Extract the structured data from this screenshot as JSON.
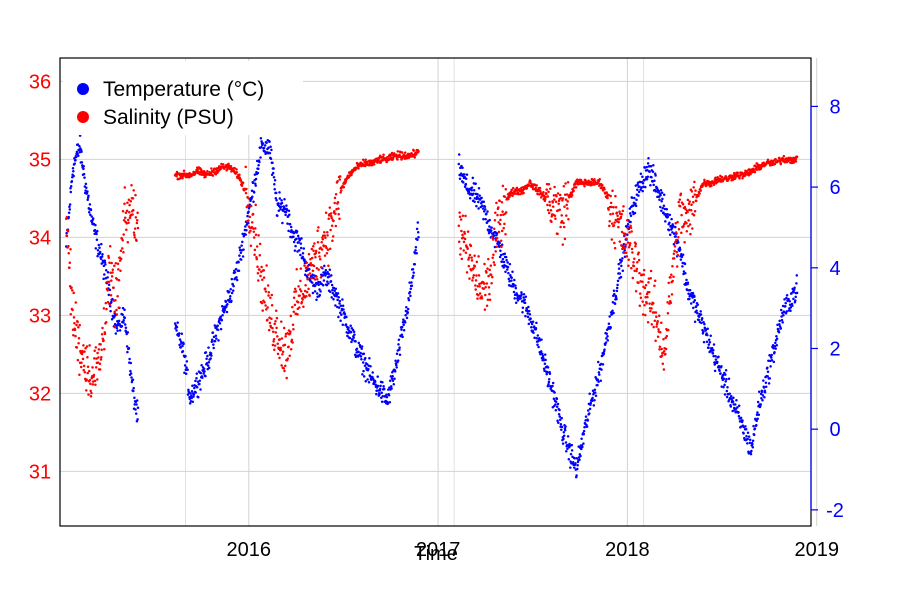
{
  "chart_data": {
    "type": "scatter",
    "xlabel": "Time",
    "x_ticks": [
      "2016",
      "2017",
      "2018",
      "2019"
    ],
    "x_range": [
      "2015-07-03",
      "2019-06-20"
    ],
    "y_left": {
      "ticks": [
        31,
        32,
        33,
        34,
        35,
        36
      ],
      "range": [
        30.3,
        36.3
      ],
      "color": "#ff0000"
    },
    "y_right": {
      "ticks": [
        -2,
        0,
        2,
        4,
        6,
        8
      ],
      "range": [
        -2.4,
        9.2
      ],
      "color": "#0000ff"
    },
    "grid": true,
    "legend": {
      "placement": "top-left"
    },
    "series": [
      {
        "name": "Temperature (°C)",
        "axis": "right",
        "color": "#0000ff",
        "segments": [
          {
            "x": [
              "2015-07-15",
              "2015-07-28",
              "2015-08-10",
              "2015-08-22",
              "2015-09-05",
              "2015-09-20",
              "2015-10-05",
              "2015-10-20",
              "2015-11-05",
              "2015-11-20",
              "2015-12-01"
            ],
            "y": [
              4.5,
              6.5,
              7.0,
              6.0,
              5.0,
              4.3,
              3.5,
              2.5,
              2.8,
              1.0,
              0.2
            ]
          },
          {
            "x": [
              "2016-02-10",
              "2016-02-25",
              "2016-03-10",
              "2016-03-25",
              "2016-04-10",
              "2016-04-25",
              "2016-05-10",
              "2016-05-25",
              "2016-06-10",
              "2016-06-25",
              "2016-07-10",
              "2016-07-25",
              "2016-08-10",
              "2016-08-25",
              "2016-09-10",
              "2016-09-25",
              "2016-10-10",
              "2016-10-25",
              "2016-11-10",
              "2016-11-25",
              "2016-12-10",
              "2016-12-25",
              "2017-01-10",
              "2017-01-25",
              "2017-02-10",
              "2017-02-25",
              "2017-03-10",
              "2017-03-25",
              "2017-04-10",
              "2017-04-25",
              "2017-05-10",
              "2017-05-25"
            ],
            "y": [
              2.5,
              2.0,
              0.8,
              1.2,
              1.6,
              2.2,
              2.8,
              3.3,
              4.0,
              5.0,
              6.0,
              7.0,
              7.0,
              5.5,
              5.5,
              4.8,
              4.5,
              3.8,
              3.5,
              3.8,
              3.5,
              3.0,
              2.5,
              2.0,
              1.6,
              1.2,
              1.0,
              0.7,
              1.5,
              2.5,
              3.5,
              5.0
            ]
          },
          {
            "x": [
              "2017-08-10",
              "2017-08-25",
              "2017-09-10",
              "2017-09-25",
              "2017-10-10",
              "2017-10-25",
              "2017-11-10",
              "2017-11-25",
              "2017-12-10",
              "2017-12-25",
              "2018-01-10",
              "2018-01-25",
              "2018-02-10",
              "2018-02-25",
              "2018-03-10",
              "2018-03-25",
              "2018-04-10",
              "2018-04-25",
              "2018-05-10",
              "2018-05-25",
              "2018-06-10",
              "2018-06-25",
              "2018-07-10",
              "2018-07-25",
              "2018-08-10",
              "2018-08-25",
              "2018-09-10",
              "2018-09-25",
              "2018-10-10",
              "2018-10-25",
              "2018-11-10",
              "2018-11-25",
              "2018-12-10",
              "2018-12-25",
              "2019-01-10",
              "2019-01-25",
              "2019-02-10",
              "2019-02-25",
              "2019-03-10",
              "2019-03-25",
              "2019-04-10",
              "2019-04-25",
              "2019-05-10",
              "2019-05-25"
            ],
            "y": [
              6.5,
              6.0,
              5.8,
              5.5,
              5.0,
              4.6,
              4.0,
              3.5,
              3.2,
              2.8,
              2.2,
              1.5,
              0.8,
              0.0,
              -0.5,
              -1.0,
              0.0,
              0.8,
              1.5,
              2.5,
              3.5,
              4.5,
              5.5,
              6.0,
              6.5,
              6.0,
              5.5,
              5.0,
              4.5,
              3.5,
              3.0,
              2.5,
              2.0,
              1.5,
              1.0,
              0.5,
              0.0,
              -0.5,
              0.5,
              1.2,
              2.0,
              2.8,
              3.2,
              3.5
            ]
          }
        ]
      },
      {
        "name": "Salinity (PSU)",
        "axis": "left",
        "color": "#ff0000",
        "segments": [
          {
            "x": [
              "2015-07-15",
              "2015-07-28",
              "2015-08-10",
              "2015-08-22",
              "2015-09-05",
              "2015-09-20",
              "2015-10-05",
              "2015-10-20",
              "2015-11-05",
              "2015-11-20",
              "2015-12-01"
            ],
            "y": [
              34.2,
              33.0,
              32.6,
              32.4,
              32.2,
              32.5,
              33.5,
              33.2,
              34.2,
              34.4,
              34.1
            ]
          },
          {
            "x": [
              "2016-02-10",
              "2016-02-25",
              "2016-03-10",
              "2016-03-25",
              "2016-04-10",
              "2016-04-25",
              "2016-05-10",
              "2016-05-25",
              "2016-06-10",
              "2016-06-25",
              "2016-07-10",
              "2016-07-25",
              "2016-08-10",
              "2016-08-25",
              "2016-09-10",
              "2016-09-25",
              "2016-10-10",
              "2016-10-25",
              "2016-11-10",
              "2016-11-25",
              "2016-12-10",
              "2016-12-25",
              "2017-01-10",
              "2017-01-25",
              "2017-02-10",
              "2017-02-25",
              "2017-03-10",
              "2017-03-25",
              "2017-04-10",
              "2017-04-25",
              "2017-05-10",
              "2017-05-25"
            ],
            "y": [
              34.8,
              34.8,
              34.8,
              34.85,
              34.8,
              34.85,
              34.9,
              34.9,
              34.8,
              34.6,
              34.2,
              33.5,
              33.0,
              32.8,
              32.5,
              33.0,
              33.3,
              33.5,
              33.8,
              34.0,
              34.2,
              34.6,
              34.8,
              34.9,
              34.95,
              34.95,
              35.0,
              35.0,
              35.05,
              35.05,
              35.05,
              35.1
            ]
          },
          {
            "x": [
              "2017-08-10",
              "2017-08-25",
              "2017-09-10",
              "2017-09-25",
              "2017-10-10",
              "2017-10-25",
              "2017-11-10",
              "2017-11-25",
              "2017-12-10",
              "2017-12-25",
              "2018-01-10",
              "2018-01-25",
              "2018-02-10",
              "2018-02-25",
              "2018-03-10",
              "2018-03-25",
              "2018-04-10",
              "2018-04-25",
              "2018-05-10",
              "2018-05-25",
              "2018-06-10",
              "2018-06-25",
              "2018-07-10",
              "2018-07-25",
              "2018-08-10",
              "2018-08-25",
              "2018-09-10",
              "2018-09-25",
              "2018-10-10",
              "2018-10-25",
              "2018-11-10",
              "2018-11-25",
              "2018-12-10",
              "2018-12-25",
              "2019-01-10",
              "2019-01-25",
              "2019-02-10",
              "2019-02-25",
              "2019-03-10",
              "2019-03-25",
              "2019-04-10",
              "2019-04-25",
              "2019-05-10",
              "2019-05-25"
            ],
            "y": [
              34.2,
              33.8,
              33.5,
              33.3,
              33.5,
              34.2,
              34.5,
              34.6,
              34.6,
              34.7,
              34.6,
              34.5,
              34.4,
              34.3,
              34.5,
              34.7,
              34.7,
              34.7,
              34.7,
              34.5,
              34.2,
              34.0,
              33.8,
              33.5,
              33.2,
              33.0,
              32.5,
              33.5,
              34.3,
              34.2,
              34.5,
              34.7,
              34.7,
              34.75,
              34.75,
              34.8,
              34.8,
              34.85,
              34.9,
              34.95,
              34.95,
              35.0,
              35.0,
              35.0
            ]
          }
        ]
      }
    ]
  }
}
